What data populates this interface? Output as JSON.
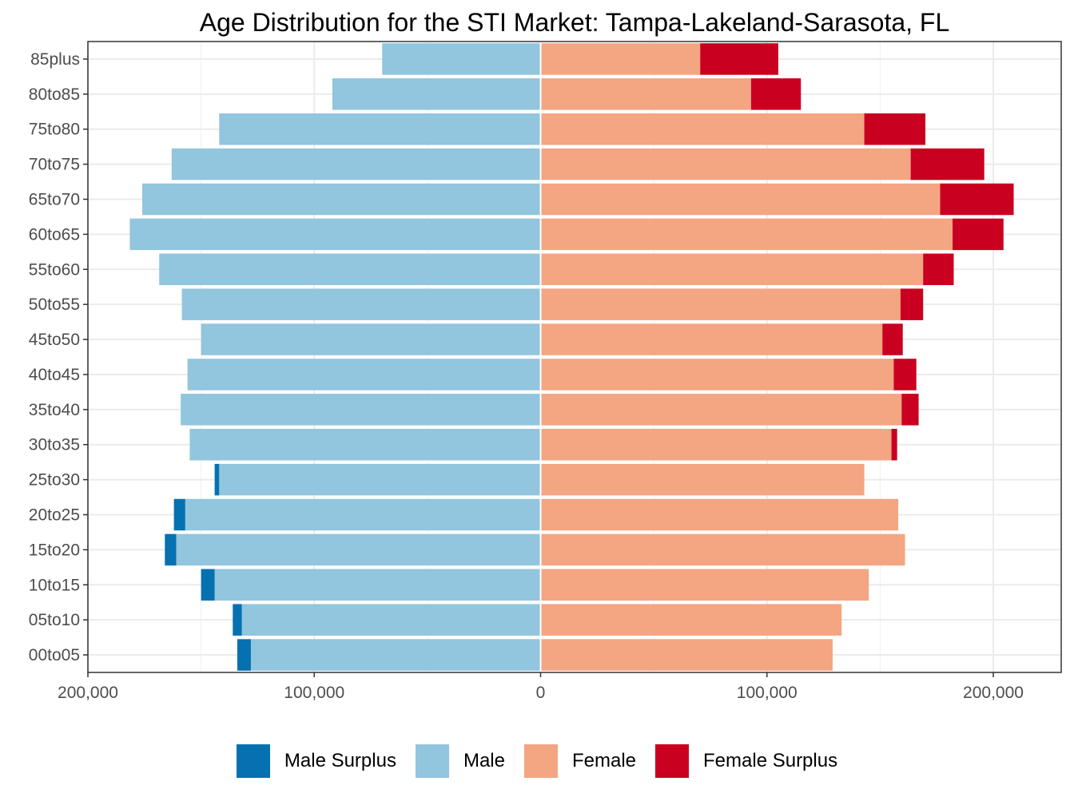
{
  "chart_data": {
    "type": "bar",
    "title": "Age Distribution for the STI Market: Tampa-Lakeland-Sarasota, FL",
    "xlabel": "",
    "ylabel": "",
    "xlim": [
      -200000,
      230000
    ],
    "x_ticks": [
      {
        "value": -200000,
        "label": "200,000"
      },
      {
        "value": -100000,
        "label": "100,000"
      },
      {
        "value": 0,
        "label": "0"
      },
      {
        "value": 100000,
        "label": "100,000"
      },
      {
        "value": 200000,
        "label": "200,000"
      }
    ],
    "categories": [
      "00to05",
      "05to10",
      "10to15",
      "15to20",
      "20to25",
      "25to30",
      "30to35",
      "35to40",
      "40to45",
      "45to50",
      "50to55",
      "55to60",
      "60to65",
      "65to70",
      "70to75",
      "75to80",
      "80to85",
      "85plus"
    ],
    "series": [
      {
        "name": "Male Surplus",
        "color": "#0571b0",
        "values": [
          6000,
          4000,
          6000,
          5000,
          5000,
          2000,
          0,
          0,
          0,
          0,
          0,
          0,
          0,
          0,
          0,
          0,
          0,
          0
        ]
      },
      {
        "name": "Male",
        "color": "#92c5de",
        "values": [
          128000,
          132000,
          144000,
          161000,
          157000,
          142000,
          155000,
          159000,
          156000,
          150000,
          158500,
          168500,
          181500,
          176000,
          163000,
          142000,
          92000,
          70000
        ]
      },
      {
        "name": "Female",
        "color": "#f4a582",
        "values": [
          129000,
          133000,
          145000,
          161000,
          158000,
          143000,
          155000,
          159500,
          156000,
          151000,
          159000,
          169000,
          182000,
          176500,
          163500,
          143000,
          93000,
          70500
        ]
      },
      {
        "name": "Female Surplus",
        "color": "#ca0020",
        "values": [
          0,
          0,
          0,
          0,
          0,
          0,
          2500,
          7500,
          10000,
          9000,
          10000,
          13500,
          22500,
          32500,
          32500,
          27000,
          22000,
          34500
        ]
      }
    ],
    "legend_position": "bottom",
    "grid": true
  }
}
